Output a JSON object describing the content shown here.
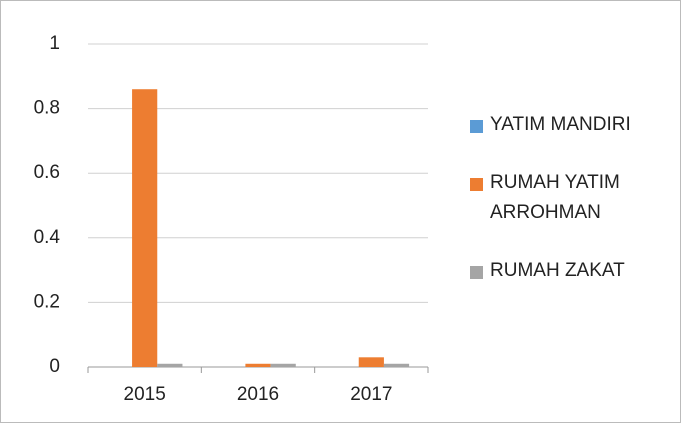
{
  "chart_data": {
    "type": "bar",
    "categories": [
      "2015",
      "2016",
      "2017"
    ],
    "series": [
      {
        "name": "YATIM MANDIRI",
        "color": "#5b9bd5",
        "values": [
          0,
          0,
          0
        ]
      },
      {
        "name": "RUMAH YATIM ARROHMAN",
        "color": "#ed7d31",
        "values": [
          0.86,
          0.01,
          0.03
        ]
      },
      {
        "name": "RUMAH ZAKAT",
        "color": "#a5a5a5",
        "values": [
          0.01,
          0.01,
          0.01
        ]
      }
    ],
    "ylim": [
      0,
      1
    ],
    "yticks": [
      0,
      0.2,
      0.4,
      0.6,
      0.8,
      1
    ],
    "grid": true,
    "legend": "right"
  }
}
